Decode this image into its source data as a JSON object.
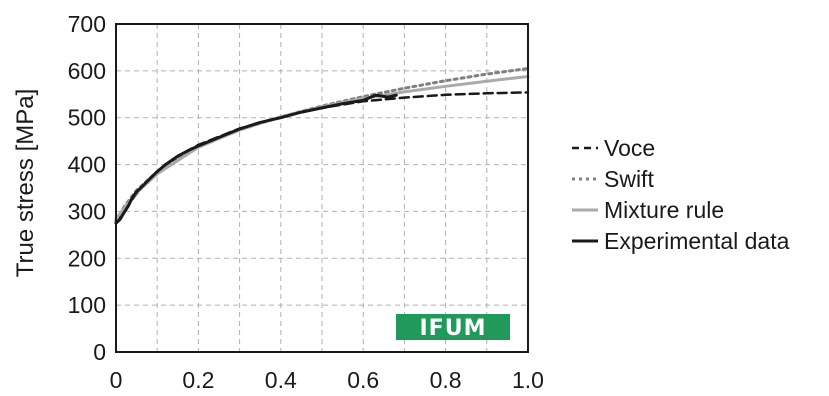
{
  "chart_data": {
    "type": "line",
    "title": "",
    "xlabel": "",
    "ylabel": "True stress  [MPa]",
    "xlim": [
      0,
      1.0
    ],
    "ylim": [
      0,
      700
    ],
    "xticks": [
      "0",
      "0.2",
      "0.4",
      "0.6",
      "0.8",
      "1.0"
    ],
    "xtick_values": [
      0,
      0.2,
      0.4,
      0.6,
      0.8,
      1.0
    ],
    "yticks": [
      "0",
      "100",
      "200",
      "300",
      "400",
      "500",
      "600",
      "700"
    ],
    "ytick_values": [
      0,
      100,
      200,
      300,
      400,
      500,
      600,
      700
    ],
    "grid": true,
    "legend_position": "right",
    "series": [
      {
        "name": "Voce",
        "color": "#1a1a1a",
        "style": "dashed",
        "x": [
          0,
          0.05,
          0.1,
          0.15,
          0.2,
          0.3,
          0.4,
          0.5,
          0.6,
          0.7,
          0.8,
          0.9,
          1.0
        ],
        "y": [
          278,
          338,
          385,
          418,
          442,
          477,
          502,
          521,
          535,
          543,
          549,
          552,
          554
        ]
      },
      {
        "name": "Swift",
        "color": "#808080",
        "style": "dotted",
        "x": [
          0,
          0.02,
          0.05,
          0.1,
          0.2,
          0.3,
          0.4,
          0.5,
          0.6,
          0.7,
          0.8,
          0.9,
          1.0
        ],
        "y": [
          280,
          310,
          345,
          385,
          438,
          474,
          502,
          525,
          545,
          563,
          579,
          593,
          605
        ]
      },
      {
        "name": "Mixture rule",
        "color": "#aaaaaa",
        "style": "solid",
        "x": [
          0,
          0.05,
          0.1,
          0.2,
          0.3,
          0.4,
          0.5,
          0.6,
          0.7,
          0.8,
          0.9,
          1.0
        ],
        "y": [
          285,
          340,
          380,
          437,
          474,
          502,
          523,
          541,
          555,
          567,
          578,
          588
        ]
      },
      {
        "name": "Experimental data",
        "color": "#1a1a1a",
        "style": "solid",
        "x": [
          0,
          0.01,
          0.02,
          0.03,
          0.04,
          0.05,
          0.06,
          0.08,
          0.1,
          0.12,
          0.15,
          0.18,
          0.2,
          0.25,
          0.3,
          0.35,
          0.4,
          0.45,
          0.5,
          0.55,
          0.6,
          0.63,
          0.66,
          0.68
        ],
        "y": [
          275,
          283,
          298,
          312,
          330,
          342,
          350,
          368,
          385,
          400,
          418,
          432,
          440,
          458,
          476,
          490,
          500,
          512,
          521,
          530,
          537,
          548,
          544,
          548
        ]
      }
    ]
  },
  "logo": {
    "text": "IFUM",
    "color": "#1f9a5a"
  }
}
